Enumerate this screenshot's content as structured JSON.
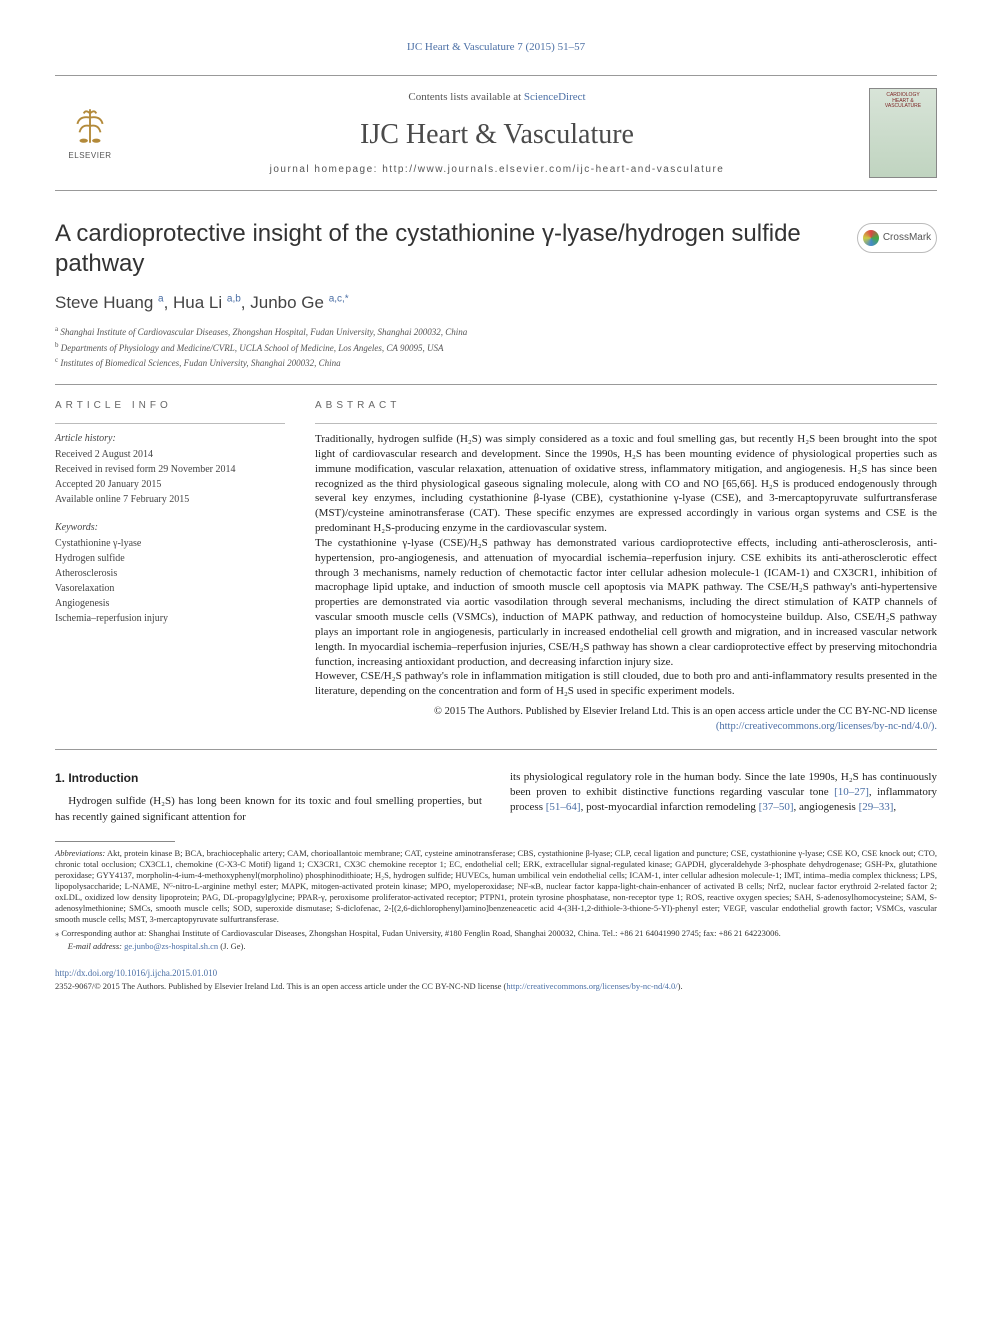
{
  "running_header": "IJC Heart & Vasculature 7 (2015) 51–57",
  "masthead": {
    "contents_prefix": "Contents lists available at ",
    "contents_link": "ScienceDirect",
    "journal_name": "IJC Heart & Vasculature",
    "homepage_prefix": "journal homepage: ",
    "homepage_url": "http://www.journals.elsevier.com/ijc-heart-and-vasculature",
    "publisher_name": "ELSEVIER",
    "cover_text_1": "CARDIOLOGY",
    "cover_text_2": "HEART &",
    "cover_text_3": "VASCULATURE"
  },
  "crossmark_label": "CrossMark",
  "title": "A cardioprotective insight of the cystathionine γ-lyase/hydrogen sulfide pathway",
  "authors_html": "Steve Huang <span class='sup'>a</span>, Hua Li <span class='sup'>a,b</span>, Junbo Ge <span class='sup'>a,c,*</span>",
  "affiliations": [
    {
      "sup": "a",
      "text": "Shanghai Institute of Cardiovascular Diseases, Zhongshan Hospital, Fudan University, Shanghai 200032, China"
    },
    {
      "sup": "b",
      "text": "Departments of Physiology and Medicine/CVRL, UCLA School of Medicine, Los Angeles, CA 90095, USA"
    },
    {
      "sup": "c",
      "text": "Institutes of Biomedical Sciences, Fudan University, Shanghai 200032, China"
    }
  ],
  "info_label": "ARTICLE INFO",
  "abstract_label": "ABSTRACT",
  "history": {
    "heading": "Article history:",
    "received": "Received 2 August 2014",
    "revised": "Received in revised form 29 November 2014",
    "accepted": "Accepted 20 January 2015",
    "online": "Available online 7 February 2015"
  },
  "keywords": {
    "heading": "Keywords:",
    "items": [
      "Cystathionine γ-lyase",
      "Hydrogen sulfide",
      "Atherosclerosis",
      "Vasorelaxation",
      "Angiogenesis",
      "Ischemia–reperfusion injury"
    ]
  },
  "abstract": {
    "p1": "Traditionally, hydrogen sulfide (H₂S) was simply considered as a toxic and foul smelling gas, but recently H₂S been brought into the spot light of cardiovascular research and development. Since the 1990s, H₂S has been mounting evidence of physiological properties such as immune modification, vascular relaxation, attenuation of oxidative stress, inflammatory mitigation, and angiogenesis. H₂S has since been recognized as the third physiological gaseous signaling molecule, along with CO and NO [65,66]. H₂S is produced endogenously through several key enzymes, including cystathionine β-lyase (CBE), cystathionine γ-lyase (CSE), and 3-mercaptopyruvate sulfurtransferase (MST)/cysteine aminotransferase (CAT). These specific enzymes are expressed accordingly in various organ systems and CSE is the predominant H₂S-producing enzyme in the cardiovascular system.",
    "p2": "The cystathionine γ-lyase (CSE)/H₂S pathway has demonstrated various cardioprotective effects, including anti-atherosclerosis, anti-hypertension, pro-angiogenesis, and attenuation of myocardial ischemia–reperfusion injury. CSE exhibits its anti-atherosclerotic effect through 3 mechanisms, namely reduction of chemotactic factor inter cellular adhesion molecule-1 (ICAM-1) and CX3CR1, inhibition of macrophage lipid uptake, and induction of smooth muscle cell apoptosis via MAPK pathway. The CSE/H₂S pathway's anti-hypertensive properties are demonstrated via aortic vasodilation through several mechanisms, including the direct stimulation of KATP channels of vascular smooth muscle cells (VSMCs), induction of MAPK pathway, and reduction of homocysteine buildup. Also, CSE/H₂S pathway plays an important role in angiogenesis, particularly in increased endothelial cell growth and migration, and in increased vascular network length. In myocardial ischemia–reperfusion injuries, CSE/H₂S pathway has shown a clear cardioprotective effect by preserving mitochondria function, increasing antioxidant production, and decreasing infarction injury size.",
    "p3": "However, CSE/H₂S pathway's role in inflammation mitigation is still clouded, due to both pro and anti-inflammatory results presented in the literature, depending on the concentration and form of H₂S used in specific experiment models."
  },
  "copyright": {
    "line": "© 2015 The Authors. Published by Elsevier Ireland Ltd. This is an open access article under the CC BY-NC-ND license",
    "url": "(http://creativecommons.org/licenses/by-nc-nd/4.0/)."
  },
  "intro": {
    "heading": "1. Introduction",
    "col1": "Hydrogen sulfide (H₂S) has long been known for its toxic and foul smelling properties, but has recently gained significant attention for",
    "col2_a": "its physiological regulatory role in the human body. Since the late 1990s, H₂S has continuously been proven to exhibit distinctive functions regarding vascular tone ",
    "col2_link1": "[10–27]",
    "col2_b": ", inflammatory process ",
    "col2_link2": "[51–64]",
    "col2_c": ", post-myocardial infarction remodeling ",
    "col2_link3": "[37–50]",
    "col2_d": ", angiogenesis ",
    "col2_link4": "[29–33]",
    "col2_e": ","
  },
  "footnotes": {
    "abbrev_label": "Abbreviations:",
    "abbrev_text": " Akt, protein kinase B; BCA, brachiocephalic artery; CAM, chorioallantoic membrane; CAT, cysteine aminotransferase; CBS, cystathionine β-lyase; CLP, cecal ligation and puncture; CSE, cystathionine γ-lyase; CSE KO, CSE knock out; CTO, chronic total occlusion; CX3CL1, chemokine (C-X3-C Motif) ligand 1; CX3CR1, CX3C chemokine receptor 1; EC, endothelial cell; ERK, extracellular signal-regulated kinase; GAPDH, glyceraldehyde 3-phosphate dehydrogenase; GSH-Px, glutathione peroxidase; GYY4137, morpholin-4-ium-4-methoxyphenyl(morpholino) phosphinodithioate; H₂S, hydrogen sulfide; HUVECs, human umbilical vein endothelial cells; ICAM-1, inter cellular adhesion molecule-1; IMT, intima–media complex thickness; LPS, lipopolysaccharide; L-NAME, Nᴳ-nitro-L-arginine methyl ester; MAPK, mitogen-activated protein kinase; MPO, myeloperoxidase; NF-κB, nuclear factor kappa-light-chain-enhancer of activated B cells; Nrf2, nuclear factor erythroid 2-related factor 2; oxLDL, oxidized low density lipoprotein; PAG, DL-propagylglycine; PPAR-γ, peroxisome proliferator-activated receptor; PTPN1, protein tyrosine phosphatase, non-receptor type 1; ROS, reactive oxygen species; SAH, S-adenosylhomocysteine; SAM, S-adenosylmethionine; SMCs, smooth muscle cells; SOD, superoxide dismutase; S-diclofenac, 2-[(2,6-dichlorophenyl)amino]benzeneacetic acid 4-(3H-1,2-dithiole-3-thione-5-Yl)-phenyl ester; VEGF, vascular endothelial growth factor; VSMCs, vascular smooth muscle cells; MST, 3-mercaptopyruvate sulfurtransferase.",
    "corresp": "⁎  Corresponding author at: Shanghai Institute of Cardiovascular Diseases, Zhongshan Hospital, Fudan University, #180 Fenglin Road, Shanghai 200032, China. Tel.: +86 21 64041990 2745; fax: +86 21 64223006.",
    "email_label": "E-mail address:",
    "email": "ge.junbo@zs-hospital.sh.cn",
    "email_suffix": " (J. Ge)."
  },
  "doi": {
    "url": "http://dx.doi.org/10.1016/j.ijcha.2015.01.010",
    "footer_line": "2352-9067/© 2015 The Authors. Published by Elsevier Ireland Ltd. This is an open access article under the CC BY-NC-ND license (",
    "footer_url": "http://creativecommons.org/licenses/by-nc-nd/4.0/",
    "footer_close": ")."
  },
  "colors": {
    "link": "#4b6fa5",
    "text": "#222222",
    "rule": "#999999",
    "title": "#333333"
  }
}
